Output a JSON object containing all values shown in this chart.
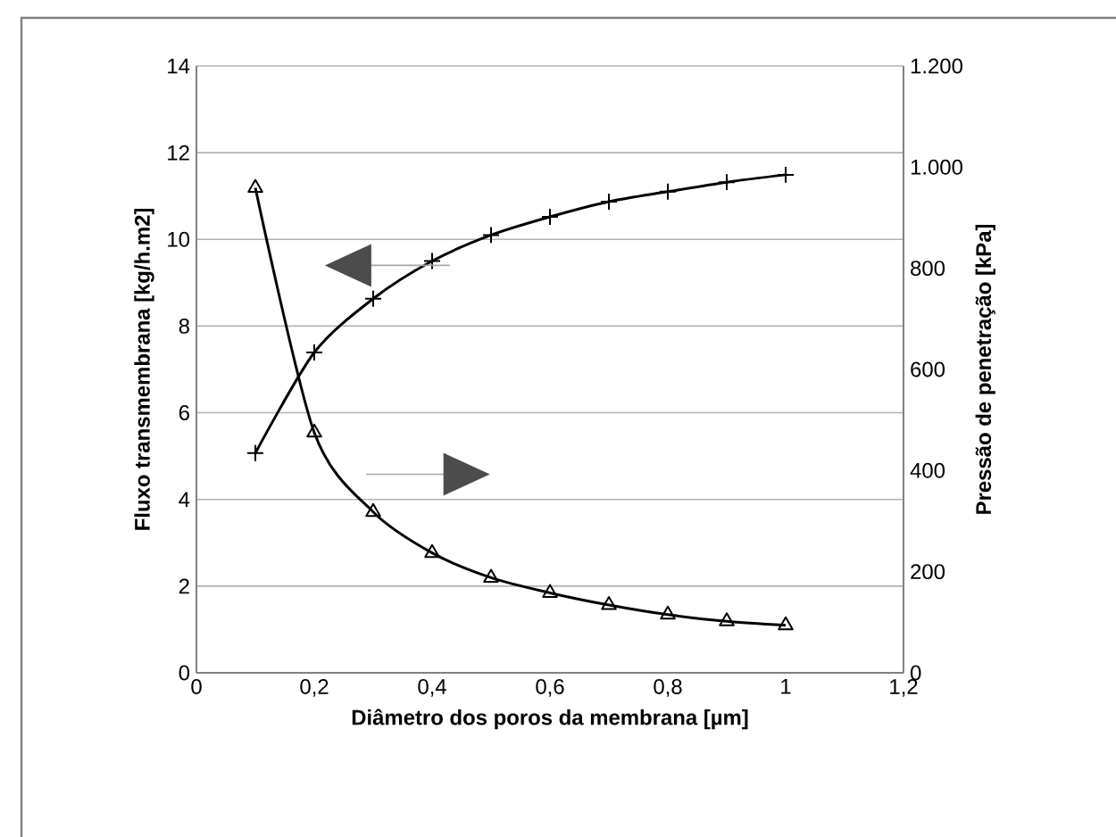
{
  "chart_data": {
    "type": "line",
    "xlabel": "Diâmetro dos poros da membrana [µm]",
    "ylabel": "Fluxo transmembrana [kg/h.m2]",
    "y2label": "Pressão de penetração [kPa]",
    "x": [
      0.1,
      0.2,
      0.3,
      0.4,
      0.5,
      0.6,
      0.7,
      0.8,
      0.9,
      1.0
    ],
    "series": [
      {
        "color": "#000000",
        "marker": "cross",
        "values": [
          5.07,
          7.39,
          8.63,
          9.5,
          10.1,
          10.52,
          10.87,
          11.1,
          11.32,
          11.49
        ]
      },
      {
        "color": "#000000",
        "marker": "triangle",
        "axis": "y2",
        "values": [
          959,
          475,
          318,
          237,
          188,
          158,
          134,
          115,
          102,
          94
        ]
      }
    ],
    "xlim": [
      0,
      1.2
    ],
    "xticks": [
      {
        "value": 0,
        "label": "0"
      },
      {
        "value": 0.2,
        "label": "0,2"
      },
      {
        "value": 0.4,
        "label": "0,4"
      },
      {
        "value": 0.6,
        "label": "0,6"
      },
      {
        "value": 0.8,
        "label": "0,8"
      },
      {
        "value": 1,
        "label": "1"
      },
      {
        "value": 1.2,
        "label": "1,2"
      }
    ],
    "ylim": [
      0,
      14
    ],
    "yticks": [
      0,
      2,
      4,
      6,
      8,
      10,
      12,
      14
    ],
    "y2lim": [
      0,
      1200
    ],
    "y2ticks": [
      0,
      200,
      400,
      600,
      800,
      {
        "value": 1000,
        "label": "1.000"
      },
      {
        "value": 1200,
        "label": "1.200"
      }
    ],
    "grid": "y",
    "line_style": "solid"
  }
}
